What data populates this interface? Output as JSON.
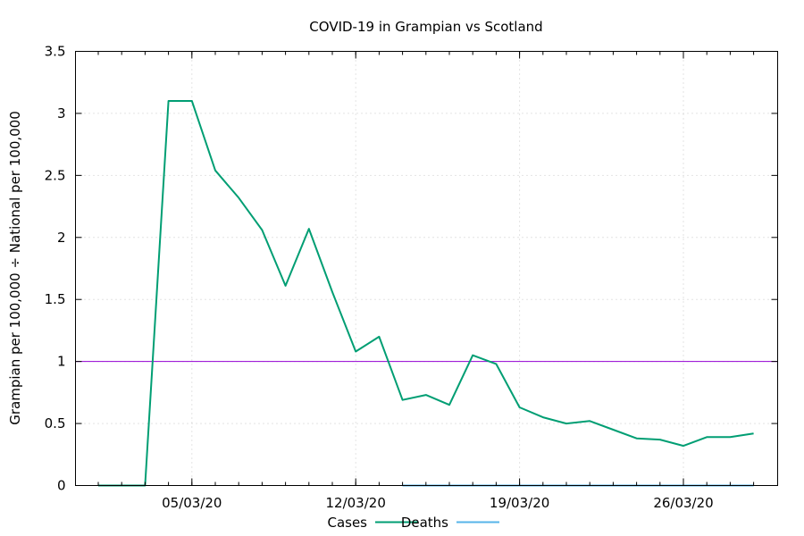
{
  "chart_data": {
    "type": "line",
    "title": "COVID-19 in Grampian vs Scotland",
    "xlabel": "",
    "ylabel": "Grampian per 100,000 ÷ National per 100,000",
    "x_axis": {
      "type": "date",
      "ticks": [
        "05/03/20",
        "12/03/20",
        "19/03/20",
        "26/03/20"
      ]
    },
    "ylim": [
      0,
      3.5
    ],
    "yticks": [
      0,
      0.5,
      1,
      1.5,
      2,
      2.5,
      3,
      3.5
    ],
    "ytick_labels": [
      "0",
      "0.5",
      "1",
      "1.5",
      "2",
      "2.5",
      "3",
      "3.5"
    ],
    "grid": true,
    "legend": "bottom",
    "reference_line": {
      "y": 1,
      "color": "#9400d3"
    },
    "series": [
      {
        "name": "Cases",
        "color": "#009e73",
        "x": [
          "01/03/20",
          "02/03/20",
          "03/03/20",
          "04/03/20",
          "05/03/20",
          "06/03/20",
          "07/03/20",
          "08/03/20",
          "09/03/20",
          "10/03/20",
          "11/03/20",
          "12/03/20",
          "13/03/20",
          "14/03/20",
          "15/03/20",
          "16/03/20",
          "17/03/20",
          "18/03/20",
          "19/03/20",
          "20/03/20",
          "21/03/20",
          "22/03/20",
          "23/03/20",
          "24/03/20",
          "25/03/20",
          "26/03/20",
          "27/03/20",
          "28/03/20",
          "29/03/20"
        ],
        "values": [
          0,
          0,
          0,
          3.1,
          3.1,
          2.54,
          2.32,
          2.06,
          1.61,
          2.07,
          1.56,
          1.08,
          1.2,
          0.69,
          0.73,
          0.65,
          1.05,
          0.98,
          0.63,
          0.55,
          0.5,
          0.52,
          0.45,
          0.38,
          0.37,
          0.32,
          0.39,
          0.39,
          0.42
        ]
      },
      {
        "name": "Deaths",
        "color": "#56b4e9",
        "x": [
          "14/03/20",
          "29/03/20"
        ],
        "values": [
          0,
          0
        ]
      }
    ]
  }
}
